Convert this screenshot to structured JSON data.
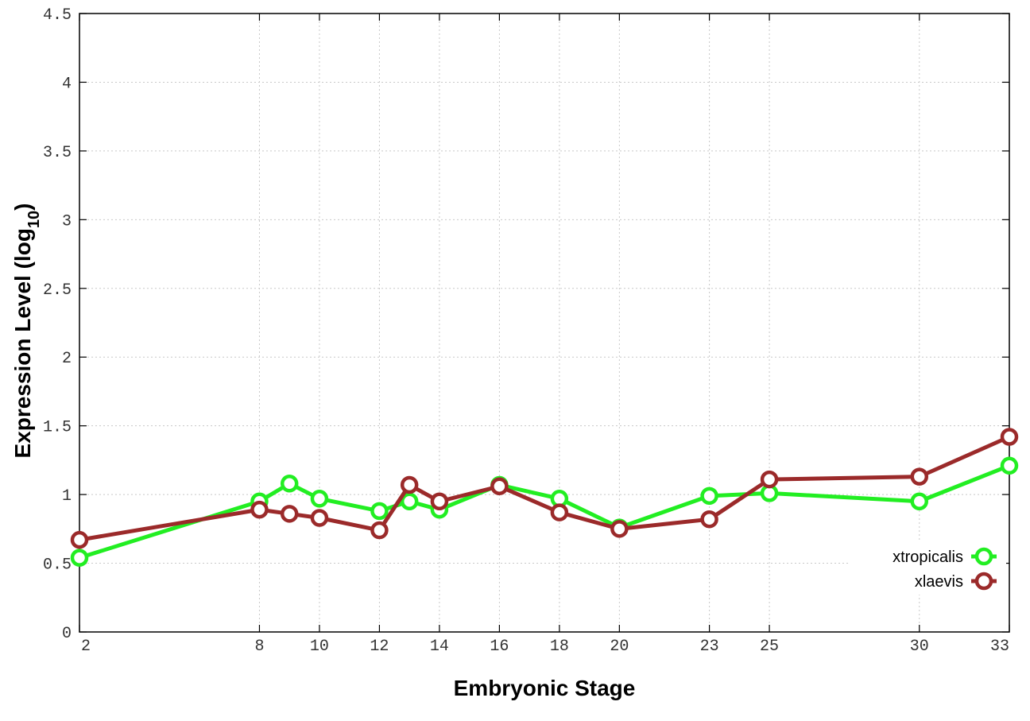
{
  "chart_data": {
    "type": "line",
    "xlabel": "Embryonic Stage",
    "ylabel": {
      "main": "Expression Level (log",
      "sub": "10",
      "close": ")"
    },
    "x_ticks": [
      2,
      8,
      10,
      12,
      14,
      16,
      18,
      20,
      23,
      25,
      30,
      33
    ],
    "y_ticks": [
      "0",
      "0.5",
      "1",
      "1.5",
      "2",
      "2.5",
      "3",
      "3.5",
      "4",
      "4.5"
    ],
    "xlim": [
      2,
      33
    ],
    "ylim": [
      0,
      4.5
    ],
    "grid": true,
    "legend_position": "bottom-right",
    "series": [
      {
        "name": "xtropicalis",
        "color": "#22ee22",
        "points": [
          [
            2,
            0.54
          ],
          [
            8,
            0.95
          ],
          [
            9,
            1.08
          ],
          [
            10,
            0.97
          ],
          [
            12,
            0.88
          ],
          [
            13,
            0.95
          ],
          [
            14,
            0.89
          ],
          [
            16,
            1.07
          ],
          [
            18,
            0.97
          ],
          [
            20,
            0.76
          ],
          [
            23,
            0.99
          ],
          [
            25,
            1.01
          ],
          [
            30,
            0.95
          ],
          [
            33,
            1.21
          ]
        ]
      },
      {
        "name": "xlaevis",
        "color": "#9b2a2a",
        "points": [
          [
            2,
            0.67
          ],
          [
            8,
            0.89
          ],
          [
            9,
            0.86
          ],
          [
            10,
            0.83
          ],
          [
            12,
            0.74
          ],
          [
            13,
            1.07
          ],
          [
            14,
            0.95
          ],
          [
            16,
            1.06
          ],
          [
            18,
            0.87
          ],
          [
            20,
            0.75
          ],
          [
            23,
            0.82
          ],
          [
            25,
            1.11
          ],
          [
            30,
            1.13
          ],
          [
            33,
            1.42
          ]
        ]
      }
    ]
  }
}
